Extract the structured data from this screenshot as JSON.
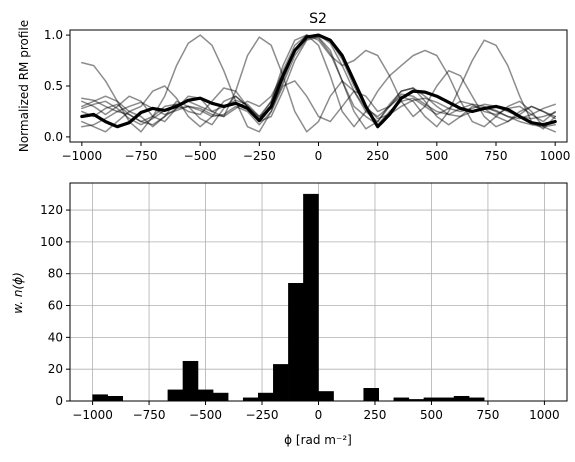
{
  "chart_data": [
    {
      "type": "line",
      "title": "S2",
      "xlabel": "",
      "ylabel": "Normalized RM profile",
      "xlim": [
        -1050,
        1050
      ],
      "ylim": [
        -0.05,
        1.05
      ],
      "xticks": [
        -1000,
        -750,
        -500,
        -250,
        0,
        250,
        500,
        750,
        1000
      ],
      "yticks": [
        0.0,
        0.5,
        1.0
      ],
      "xtick_labels": [
        "−1000",
        "−750",
        "−500",
        "−250",
        "0",
        "250",
        "500",
        "750",
        "1000"
      ],
      "ytick_labels": [
        "0.0",
        "0.5",
        "1.0"
      ],
      "grid": false,
      "line_color": "#000000",
      "series": [
        {
          "x": [
            -1000,
            -950,
            -900,
            -850,
            -800,
            -750,
            -700,
            -650,
            -600,
            -550,
            -500,
            -450,
            -400,
            -350,
            -300,
            -250,
            -200,
            -150,
            -100,
            -50,
            0,
            50,
            100,
            150,
            200,
            250,
            300,
            350,
            400,
            450,
            500,
            550,
            600,
            650,
            700,
            750,
            800,
            850,
            900,
            950,
            1000
          ],
          "y": [
            0.2,
            0.22,
            0.15,
            0.1,
            0.14,
            0.24,
            0.28,
            0.26,
            0.3,
            0.36,
            0.38,
            0.33,
            0.3,
            0.33,
            0.28,
            0.16,
            0.3,
            0.6,
            0.85,
            0.98,
            1.0,
            0.95,
            0.8,
            0.55,
            0.3,
            0.1,
            0.22,
            0.38,
            0.45,
            0.44,
            0.4,
            0.34,
            0.28,
            0.25,
            0.28,
            0.3,
            0.27,
            0.2,
            0.14,
            0.12,
            0.15
          ],
          "width": 3.2,
          "opacity": 1.0
        },
        {
          "x": [
            -1000,
            -950,
            -900,
            -850,
            -800,
            -750,
            -700,
            -650,
            -600,
            -550,
            -500,
            -450,
            -400,
            -350,
            -300,
            -250,
            -200,
            -150,
            -100,
            -50,
            0,
            50,
            100,
            150,
            200,
            250,
            300,
            350,
            400,
            450,
            500,
            550,
            600,
            650,
            700,
            750,
            800,
            850,
            900,
            950,
            1000
          ],
          "y": [
            0.73,
            0.7,
            0.55,
            0.35,
            0.15,
            0.05,
            0.2,
            0.4,
            0.7,
            0.92,
            1.0,
            0.9,
            0.65,
            0.35,
            0.1,
            0.05,
            0.25,
            0.5,
            0.55,
            0.4,
            0.2,
            0.15,
            0.3,
            0.45,
            0.4,
            0.25,
            0.3,
            0.45,
            0.48,
            0.35,
            0.2,
            0.12,
            0.2,
            0.3,
            0.28,
            0.2,
            0.15,
            0.22,
            0.3,
            0.25,
            0.18
          ],
          "width": 1.5,
          "opacity": 0.45
        },
        {
          "x": [
            -1000,
            -950,
            -900,
            -850,
            -800,
            -750,
            -700,
            -650,
            -600,
            -550,
            -500,
            -450,
            -400,
            -350,
            -300,
            -250,
            -200,
            -150,
            -100,
            -50,
            0,
            50,
            100,
            150,
            200,
            250,
            300,
            350,
            400,
            450,
            500,
            550,
            600,
            650,
            700,
            750,
            800,
            850,
            900,
            950,
            1000
          ],
          "y": [
            0.35,
            0.3,
            0.22,
            0.3,
            0.4,
            0.35,
            0.2,
            0.15,
            0.28,
            0.4,
            0.38,
            0.25,
            0.2,
            0.45,
            0.8,
            0.98,
            0.9,
            0.6,
            0.25,
            0.05,
            0.15,
            0.4,
            0.55,
            0.45,
            0.25,
            0.15,
            0.3,
            0.4,
            0.35,
            0.2,
            0.1,
            0.25,
            0.5,
            0.75,
            0.95,
            0.9,
            0.7,
            0.4,
            0.15,
            0.08,
            0.2
          ],
          "width": 1.5,
          "opacity": 0.45
        },
        {
          "x": [
            -1000,
            -950,
            -900,
            -850,
            -800,
            -750,
            -700,
            -650,
            -600,
            -550,
            -500,
            -450,
            -400,
            -350,
            -300,
            -250,
            -200,
            -150,
            -100,
            -50,
            0,
            50,
            100,
            150,
            200,
            250,
            300,
            350,
            400,
            450,
            500,
            550,
            600,
            650,
            700,
            750,
            800,
            850,
            900,
            950,
            1000
          ],
          "y": [
            0.3,
            0.35,
            0.4,
            0.35,
            0.25,
            0.3,
            0.45,
            0.5,
            0.38,
            0.2,
            0.1,
            0.2,
            0.35,
            0.4,
            0.3,
            0.2,
            0.35,
            0.65,
            0.9,
            1.0,
            0.95,
            0.8,
            0.7,
            0.75,
            0.85,
            0.8,
            0.6,
            0.35,
            0.2,
            0.3,
            0.5,
            0.65,
            0.6,
            0.4,
            0.2,
            0.1,
            0.15,
            0.25,
            0.3,
            0.25,
            0.2
          ],
          "width": 1.5,
          "opacity": 0.45
        },
        {
          "x": [
            -1000,
            -950,
            -900,
            -850,
            -800,
            -750,
            -700,
            -650,
            -600,
            -550,
            -500,
            -450,
            -400,
            -350,
            -300,
            -250,
            -200,
            -150,
            -100,
            -50,
            0,
            50,
            100,
            150,
            200,
            250,
            300,
            350,
            400,
            450,
            500,
            550,
            600,
            650,
            700,
            750,
            800,
            850,
            900,
            950,
            1000
          ],
          "y": [
            0.15,
            0.1,
            0.05,
            0.15,
            0.25,
            0.2,
            0.1,
            0.2,
            0.35,
            0.3,
            0.18,
            0.12,
            0.28,
            0.4,
            0.3,
            0.18,
            0.35,
            0.7,
            0.95,
            1.0,
            0.9,
            0.6,
            0.25,
            0.1,
            0.25,
            0.45,
            0.6,
            0.7,
            0.8,
            0.85,
            0.8,
            0.6,
            0.35,
            0.15,
            0.1,
            0.2,
            0.3,
            0.35,
            0.25,
            0.1,
            0.05
          ],
          "width": 1.5,
          "opacity": 0.45
        },
        {
          "x": [
            -1000,
            -950,
            -900,
            -850,
            -800,
            -750,
            -700,
            -650,
            -600,
            -550,
            -500,
            -450,
            -400,
            -350,
            -300,
            -250,
            -200,
            -150,
            -100,
            -50,
            0,
            50,
            100,
            150,
            200,
            250,
            300,
            350,
            400,
            450,
            500,
            550,
            600,
            650,
            700,
            750,
            800,
            850,
            900,
            950,
            1000
          ],
          "y": [
            0.25,
            0.2,
            0.28,
            0.32,
            0.22,
            0.15,
            0.2,
            0.3,
            0.32,
            0.25,
            0.22,
            0.35,
            0.48,
            0.45,
            0.3,
            0.15,
            0.2,
            0.45,
            0.75,
            0.95,
            0.98,
            0.85,
            0.55,
            0.3,
            0.2,
            0.12,
            0.25,
            0.35,
            0.38,
            0.3,
            0.22,
            0.28,
            0.35,
            0.32,
            0.25,
            0.22,
            0.28,
            0.3,
            0.22,
            0.15,
            0.25
          ],
          "width": 1.5,
          "opacity": 0.45
        },
        {
          "x": [
            -1000,
            -950,
            -900,
            -850,
            -800,
            -750,
            -700,
            -650,
            -600,
            -550,
            -500,
            -450,
            -400,
            -350,
            -300,
            -250,
            -200,
            -150,
            -100,
            -50,
            0,
            50,
            100,
            150,
            200,
            250,
            300,
            350,
            400,
            450,
            500,
            550,
            600,
            650,
            700,
            750,
            800,
            850,
            900,
            950,
            1000
          ],
          "y": [
            0.38,
            0.36,
            0.3,
            0.25,
            0.3,
            0.34,
            0.28,
            0.22,
            0.26,
            0.3,
            0.28,
            0.22,
            0.2,
            0.28,
            0.35,
            0.3,
            0.4,
            0.62,
            0.85,
            0.98,
            1.0,
            0.92,
            0.7,
            0.45,
            0.28,
            0.2,
            0.3,
            0.42,
            0.4,
            0.32,
            0.25,
            0.22,
            0.28,
            0.32,
            0.3,
            0.25,
            0.2,
            0.18,
            0.22,
            0.28,
            0.32
          ],
          "width": 1.5,
          "opacity": 0.45
        },
        {
          "x": [
            -1000,
            -950,
            -900,
            -850,
            -800,
            -750,
            -700,
            -650,
            -600,
            -550,
            -500,
            -450,
            -400,
            -350,
            -300,
            -250,
            -200,
            -150,
            -100,
            -50,
            0,
            50,
            100,
            150,
            200,
            250,
            300,
            350,
            400,
            450,
            500,
            550,
            600,
            650,
            700,
            750,
            800,
            850,
            900,
            950,
            1000
          ],
          "y": [
            0.1,
            0.12,
            0.18,
            0.25,
            0.22,
            0.15,
            0.12,
            0.2,
            0.28,
            0.3,
            0.26,
            0.2,
            0.22,
            0.3,
            0.25,
            0.12,
            0.25,
            0.55,
            0.85,
            1.0,
            0.97,
            0.82,
            0.55,
            0.25,
            0.08,
            0.15,
            0.32,
            0.45,
            0.48,
            0.4,
            0.3,
            0.22,
            0.2,
            0.25,
            0.28,
            0.26,
            0.2,
            0.15,
            0.12,
            0.1,
            0.12
          ],
          "width": 1.5,
          "opacity": 0.45
        },
        {
          "x": [
            -1000,
            -950,
            -900,
            -850,
            -800,
            -750,
            -700,
            -650,
            -600,
            -550,
            -500,
            -450,
            -400,
            -350,
            -300,
            -250,
            -200,
            -150,
            -100,
            -50,
            0,
            50,
            100,
            150,
            200,
            250,
            300,
            350,
            400,
            450,
            500,
            550,
            600,
            650,
            700,
            750,
            800,
            850,
            900,
            950,
            1000
          ],
          "y": [
            0.28,
            0.32,
            0.35,
            0.28,
            0.18,
            0.12,
            0.18,
            0.26,
            0.32,
            0.35,
            0.3,
            0.25,
            0.3,
            0.36,
            0.32,
            0.2,
            0.28,
            0.52,
            0.8,
            0.96,
            1.0,
            0.94,
            0.76,
            0.5,
            0.3,
            0.18,
            0.22,
            0.3,
            0.36,
            0.38,
            0.34,
            0.28,
            0.25,
            0.28,
            0.32,
            0.3,
            0.25,
            0.2,
            0.18,
            0.2,
            0.24
          ],
          "width": 1.5,
          "opacity": 0.45
        }
      ]
    },
    {
      "type": "bar",
      "title": "",
      "xlabel": "ϕ [rad m⁻²]",
      "ylabel": "w. n(ϕ)",
      "xlim": [
        -1100,
        1100
      ],
      "ylim": [
        0,
        137
      ],
      "xticks": [
        -1000,
        -750,
        -500,
        -250,
        0,
        250,
        500,
        750,
        1000
      ],
      "yticks": [
        0,
        20,
        40,
        60,
        80,
        100,
        120
      ],
      "xtick_labels": [
        "−1000",
        "−750",
        "−500",
        "−250",
        "0",
        "250",
        "500",
        "750",
        "1000"
      ],
      "ytick_labels": [
        "0",
        "20",
        "40",
        "60",
        "80",
        "100",
        "120"
      ],
      "grid": true,
      "bar_color": "#000000",
      "bin_width": 66.7,
      "bin_starts": [
        -1000,
        -933.3,
        -866.7,
        -800,
        -733.3,
        -666.7,
        -600,
        -533.3,
        -466.7,
        -400,
        -333.3,
        -266.7,
        -200,
        -133.3,
        -66.7,
        0,
        66.7,
        133.3,
        200,
        266.7,
        333.3,
        400,
        466.7,
        533.3,
        600,
        666.7,
        733.3,
        800,
        866.7,
        933.3
      ],
      "values": [
        4,
        3,
        0,
        0,
        0,
        7,
        25,
        7,
        5,
        0,
        2,
        5,
        23,
        74,
        130,
        6,
        0,
        0,
        8,
        0,
        2,
        1,
        2,
        2,
        3,
        2,
        0,
        0,
        0,
        0
      ]
    }
  ]
}
